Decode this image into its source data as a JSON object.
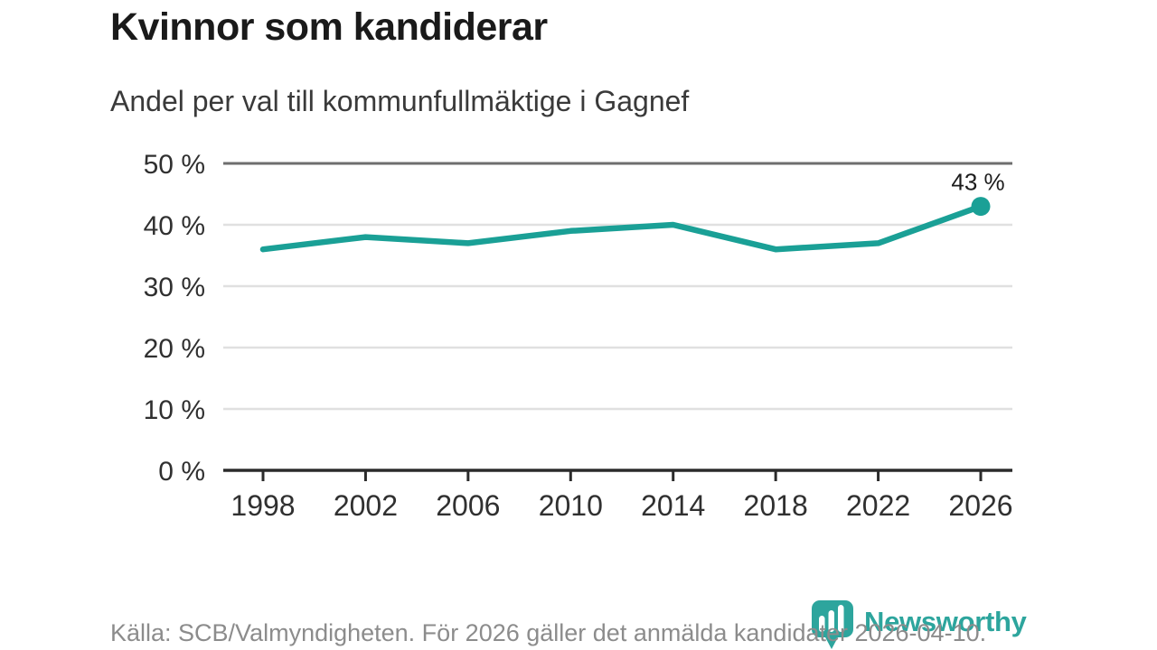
{
  "header": {
    "title": "Kvinnor som kandiderar",
    "subtitle": "Andel per val till kommunfullmäktige i Gagnef"
  },
  "chart_data": {
    "type": "line",
    "title": "Kvinnor som kandiderar",
    "subtitle": "Andel per val till kommunfullmäktige i Gagnef",
    "x": [
      "1998",
      "2002",
      "2006",
      "2010",
      "2014",
      "2018",
      "2022",
      "2026"
    ],
    "values": [
      36,
      38,
      37,
      39,
      40,
      36,
      37,
      43
    ],
    "ylim": [
      0,
      50
    ],
    "ytick_values": [
      0,
      10,
      20,
      30,
      40,
      50
    ],
    "ytick_labels": [
      "0 %",
      "10 %",
      "20 %",
      "30 %",
      "40 %",
      "50 %"
    ],
    "end_point_label": "43 %",
    "line_color": "#1aa096",
    "grid": true,
    "legend": "none"
  },
  "footer": {
    "source": "Källa: SCB/Valmyndigheten. För 2026 gäller det anmälda kandidater 2026-04-10.",
    "brand": "Newsworthy",
    "brand_color": "#2da59d"
  }
}
